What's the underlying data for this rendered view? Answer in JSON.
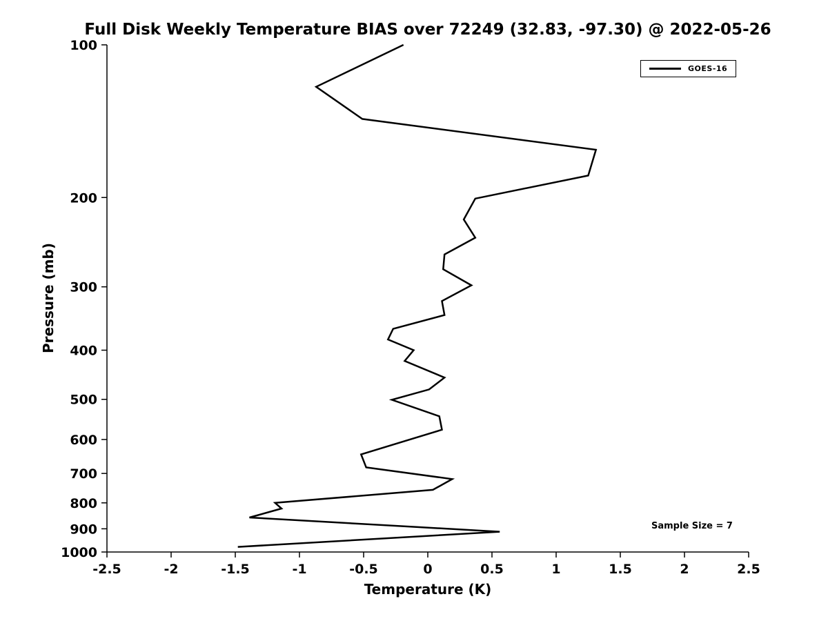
{
  "chart_data": {
    "type": "line",
    "title": "Full Disk Weekly Temperature BIAS over 72249 (32.83, -97.30) @ 2022-05-26",
    "xlabel": "Temperature (K)",
    "ylabel": "Pressure (mb)",
    "xlim": [
      -2.5,
      2.5
    ],
    "ylim_pressure": [
      100,
      1000
    ],
    "y_scale": "log",
    "y_axis_inverted": true,
    "grid": false,
    "x_ticks": [
      "-2.5",
      "-2",
      "-1.5",
      "-1",
      "-0.5",
      "0",
      "0.5",
      "1",
      "1.5",
      "2",
      "2.5"
    ],
    "y_ticks": [
      "100",
      "200",
      "300",
      "400",
      "500",
      "600",
      "700",
      "800",
      "900",
      "1000"
    ],
    "legend": {
      "position": "top-right",
      "entries": [
        {
          "label": "GOES-16",
          "color": "#000000",
          "line_width": 2.5
        }
      ]
    },
    "annotation": "Sample Size = 7",
    "series": [
      {
        "name": "GOES-16",
        "color": "#000000",
        "pressure_mb": [
          100,
          121,
          140,
          161,
          181,
          201,
          221,
          240,
          259,
          277,
          298,
          320,
          341,
          363,
          381,
          400,
          420,
          453,
          478,
          501,
          540,
          574,
          642,
          681,
          718,
          754,
          800,
          821,
          855,
          912,
          977
        ],
        "bias_k": [
          -0.19,
          -0.87,
          -0.51,
          1.31,
          1.25,
          0.37,
          0.28,
          0.37,
          0.13,
          0.12,
          0.34,
          0.11,
          0.13,
          -0.27,
          -0.31,
          -0.11,
          -0.18,
          0.13,
          0.01,
          -0.28,
          0.09,
          0.11,
          -0.52,
          -0.48,
          0.19,
          0.04,
          -1.19,
          -1.14,
          -1.39,
          0.56,
          -1.48
        ]
      }
    ]
  }
}
